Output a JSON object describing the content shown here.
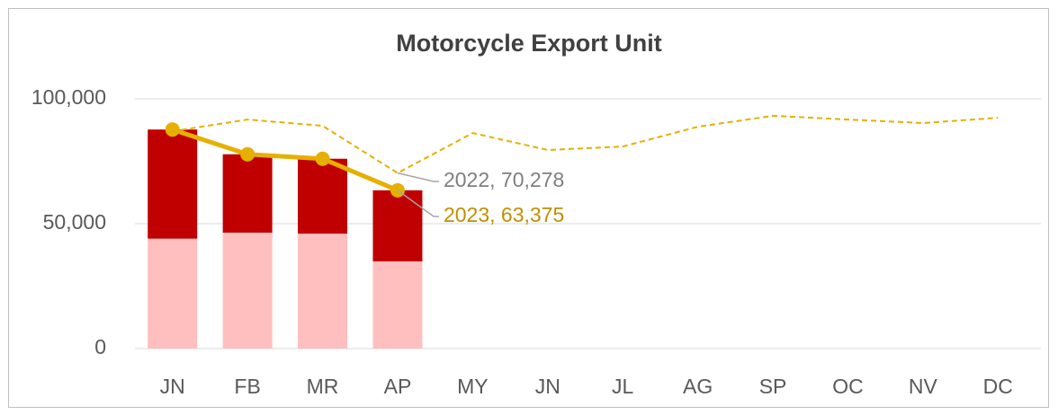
{
  "chart_data": {
    "type": "bar",
    "stacked": true,
    "title": "Motorcycle Export Unit",
    "categories": [
      "JN",
      "FB",
      "MR",
      "AP",
      "MY",
      "JN",
      "JL",
      "AG",
      "SP",
      "OC",
      "NV",
      "DC"
    ],
    "ylim": [
      0,
      100000
    ],
    "yticks": [
      0,
      {
        "value": 50000,
        "label": "50,000"
      },
      {
        "value": 100000,
        "label": "100,000"
      }
    ],
    "grid": true,
    "series": [
      {
        "color": "#ffbfbf",
        "values": [
          44000,
          46400,
          46000,
          34900,
          null,
          null,
          null,
          null,
          null,
          null,
          null,
          null
        ]
      },
      {
        "color": "#c00000",
        "values": [
          43700,
          31400,
          30000,
          28475,
          null,
          null,
          null,
          null,
          null,
          null,
          null,
          null
        ]
      },
      {
        "name": "2023",
        "type": "line",
        "color": "#e6b000",
        "label_color": "#bf9000",
        "markers": true,
        "values": [
          87700,
          77800,
          76000,
          63375,
          null,
          null,
          null,
          null,
          null,
          null,
          null,
          null
        ],
        "value_labels": [
          null,
          null,
          null,
          "2023, 63,375",
          null,
          null,
          null,
          null,
          null,
          null,
          null,
          null
        ]
      },
      {
        "name": "2022",
        "type": "line",
        "color": "#e6b000",
        "label_color": "#7f7f7f",
        "dashed": true,
        "values": [
          87000,
          91700,
          89200,
          70278,
          86300,
          79500,
          80900,
          88800,
          93200,
          91700,
          90300,
          92400
        ],
        "value_labels": [
          null,
          null,
          null,
          "2022, 70,278",
          null,
          null,
          null,
          null,
          null,
          null,
          null,
          null
        ]
      }
    ]
  }
}
